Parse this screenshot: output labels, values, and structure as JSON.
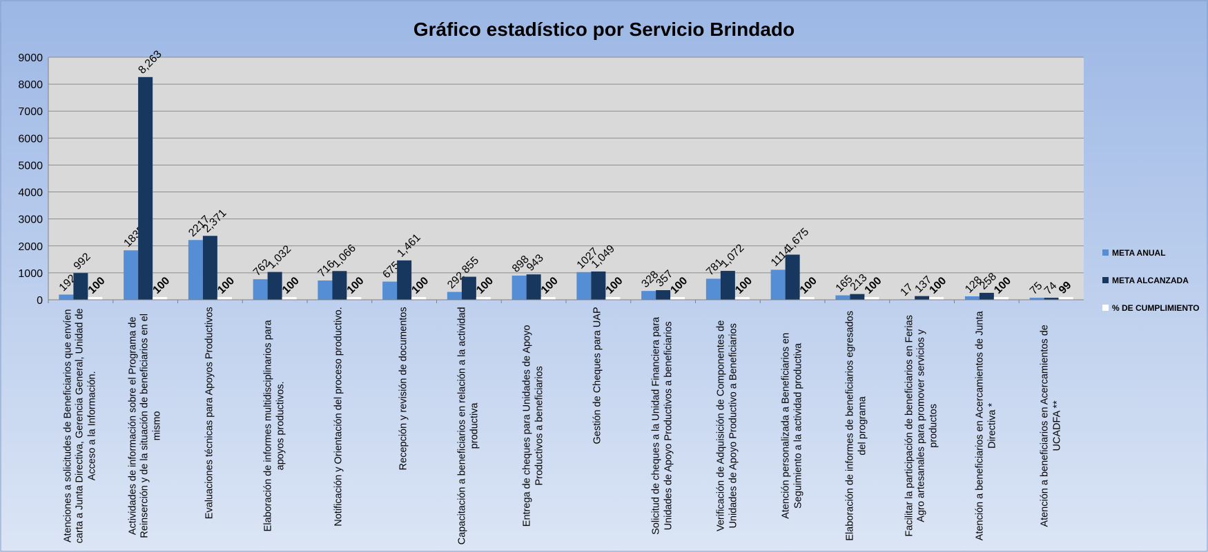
{
  "chart_data": {
    "type": "bar",
    "title": "Gráfico estadístico por Servicio Brindado",
    "categories": [
      "Atenciones a solicitudes de Beneficiarios que envíen carta a Junta Directiva,  Gerencia General, Unidad de Acceso a la Información.",
      "Actividades de información sobre el Programa de Reinserción y de la situación de beneficiarios en el mismo",
      "Evaluaciones técnicas para Apoyos Productivos",
      "Elaboración de informes multidisciplinarios para apoyos productivos.",
      "Notificación y Orientación del proceso productivo.",
      "Recepción y revisión de documentos",
      "Capacitación a beneficiarios en relación a la actividad productiva",
      "Entrega de cheques para Unidades de Apoyo Productivos a beneficiarios",
      "Gestión de Cheques para UAP",
      "Solicitud de cheques a la Unidad Financiera para Unidades de Apoyo Productivos a beneficiarios",
      "Verificación de  Adquisición de Componentes de Unidades de Apoyo Productivo a Beneficiarios",
      "Atención personalizada a Beneficiarios en Seguimiento a la actividad productiva",
      "Elaboración de informes de beneficiarios egresados del programa",
      "Facilitar la participación de beneficiarios en Ferias Agro artesanales para promover servicios y productos",
      "Atención a beneficiarios en Acercamientos de Junta Directiva *",
      "Atención a beneficiarios en Acercamientos de UCADFA **"
    ],
    "series": [
      {
        "name": "META ANUAL",
        "color": "#558ed5",
        "values": [
          192,
          1835,
          2217,
          762,
          716,
          675,
          292,
          898,
          1027,
          328,
          781,
          1114,
          165,
          17,
          128,
          75
        ]
      },
      {
        "name": "META ALCANZADA",
        "color": "#17375e",
        "values": [
          992,
          8263,
          2371,
          1032,
          1066,
          1461,
          855,
          943,
          1049,
          357,
          1072,
          1675,
          213,
          137,
          258,
          74
        ],
        "value_labels": [
          "992",
          "8,263",
          "2,371",
          "1,032",
          "1,066",
          "1,461",
          "855",
          "943",
          "1,049",
          "357",
          "1,072",
          "1,675",
          "213",
          "137",
          "258",
          "74"
        ]
      },
      {
        "name": "% DE CUMPLIMIENTO",
        "color": "#ffffff",
        "values": [
          100,
          100,
          100,
          100,
          100,
          100,
          100,
          100,
          100,
          100,
          100,
          100,
          100,
          100,
          100,
          99
        ]
      }
    ],
    "ylim": [
      0,
      9000
    ],
    "yticks": [
      0,
      1000,
      2000,
      3000,
      4000,
      5000,
      6000,
      7000,
      8000,
      9000
    ],
    "grid": true,
    "legend": "right"
  }
}
